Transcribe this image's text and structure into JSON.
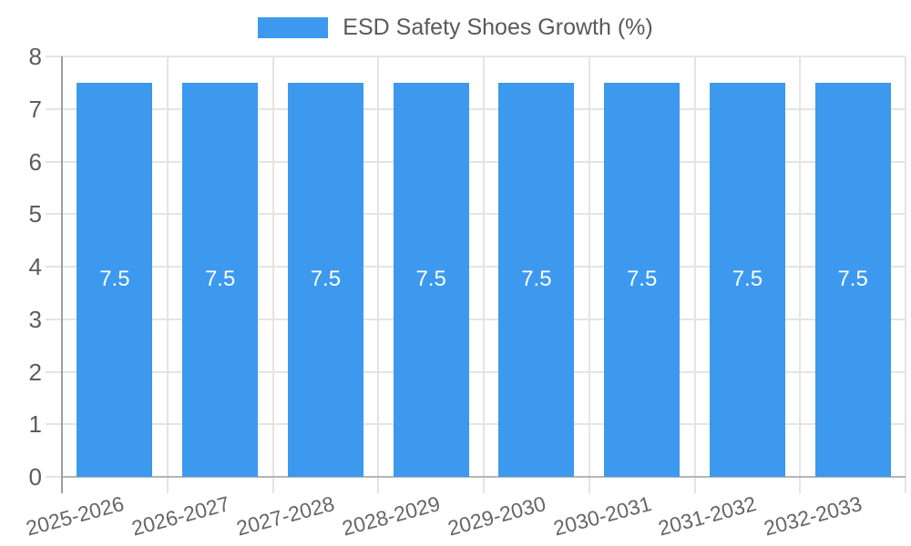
{
  "chart_data": {
    "type": "bar",
    "title": "",
    "legend_label": "ESD Safety Shoes Growth (%)",
    "legend_position": "top-center",
    "categories": [
      "2025-2026",
      "2026-2027",
      "2027-2028",
      "2028-2029",
      "2029-2030",
      "2030-2031",
      "2031-2032",
      "2032-2033"
    ],
    "series": [
      {
        "name": "ESD Safety Shoes Growth (%)",
        "values": [
          7.5,
          7.5,
          7.5,
          7.5,
          7.5,
          7.5,
          7.5,
          7.5
        ]
      }
    ],
    "bar_labels": [
      "7.5",
      "7.5",
      "7.5",
      "7.5",
      "7.5",
      "7.5",
      "7.5",
      "7.5"
    ],
    "xlabel": "",
    "ylabel": "",
    "ylim": [
      0,
      8
    ],
    "yticks": [
      "0",
      "1",
      "2",
      "3",
      "4",
      "5",
      "6",
      "7",
      "8"
    ],
    "grid": true,
    "x_label_rotation_deg": -15,
    "colors": {
      "bar": "#3c99ee",
      "bar_label": "#ffffff",
      "grid": "#e4e4e4",
      "y_axis_line": "#9e9e9e",
      "x_baseline": "#b5b5b5",
      "tick_label": "#5c5c5e",
      "legend_text": "#595959",
      "background": "#ffffff"
    }
  }
}
